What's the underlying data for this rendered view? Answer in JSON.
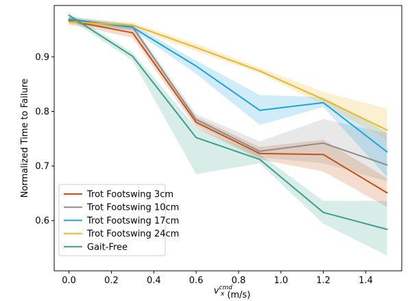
{
  "chart_data": {
    "type": "line",
    "ylabel": "Normalized Time to Failure",
    "xlabel": {
      "base": "v",
      "sup": "cmd",
      "sub": "x",
      "rest": " (m/s)"
    },
    "xlim": [
      -0.07,
      1.57
    ],
    "ylim": [
      0.508,
      0.994
    ],
    "xticks": [
      0.0,
      0.2,
      0.4,
      0.6,
      0.8,
      1.0,
      1.2,
      1.4
    ],
    "xtick_labels": [
      "0.0",
      "0.2",
      "0.4",
      "0.6",
      "0.8",
      "1.0",
      "1.2",
      "1.4"
    ],
    "yticks": [
      0.6,
      0.7,
      0.8,
      0.9
    ],
    "ytick_labels": [
      "0.6",
      "0.7",
      "0.8",
      "0.9"
    ],
    "grid": false,
    "legend_position": "lower-left",
    "x": [
      0.0,
      0.3,
      0.6,
      0.9,
      1.2,
      1.5
    ],
    "series": [
      {
        "name": "Trot Footswing 3cm",
        "color": "#c8500f",
        "values": [
          0.966,
          0.944,
          0.78,
          0.723,
          0.721,
          0.651
        ],
        "lower": [
          0.96,
          0.935,
          0.77,
          0.712,
          0.69,
          0.625
        ],
        "upper": [
          0.972,
          0.952,
          0.79,
          0.735,
          0.748,
          0.678
        ]
      },
      {
        "name": "Trot Footswing 10cm",
        "color": "#8c8c8c",
        "values": [
          0.969,
          0.955,
          0.785,
          0.727,
          0.742,
          0.702
        ],
        "lower": [
          0.963,
          0.948,
          0.775,
          0.716,
          0.705,
          0.672
        ],
        "upper": [
          0.974,
          0.96,
          0.795,
          0.745,
          0.786,
          0.76
        ]
      },
      {
        "name": "Trot Footswing 17cm",
        "color": "#1ba1df",
        "values": [
          0.968,
          0.954,
          0.883,
          0.802,
          0.816,
          0.726
        ],
        "lower": [
          0.962,
          0.949,
          0.869,
          0.775,
          0.808,
          0.68
        ],
        "upper": [
          0.973,
          0.959,
          0.893,
          0.83,
          0.826,
          0.762
        ]
      },
      {
        "name": "Trot Footswing 24cm",
        "color": "#f0b323",
        "values": [
          0.964,
          0.958,
          0.917,
          0.874,
          0.822,
          0.766
        ],
        "lower": [
          0.958,
          0.952,
          0.91,
          0.87,
          0.812,
          0.748
        ],
        "upper": [
          0.97,
          0.963,
          0.924,
          0.88,
          0.836,
          0.805
        ]
      },
      {
        "name": "Gait-Free",
        "color": "#3a9e8c",
        "values": [
          0.976,
          0.901,
          0.752,
          0.712,
          0.615,
          0.584
        ],
        "lower": [
          0.97,
          0.893,
          0.685,
          0.705,
          0.594,
          0.536
        ],
        "upper": [
          0.98,
          0.908,
          0.77,
          0.722,
          0.636,
          0.636
        ]
      }
    ]
  }
}
